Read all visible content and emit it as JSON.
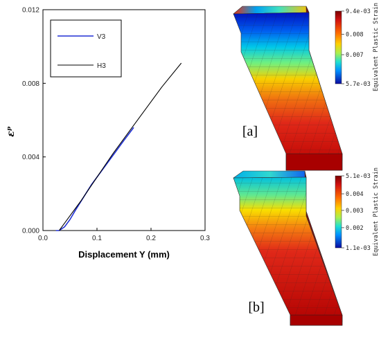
{
  "chart_data": {
    "type": "line",
    "xlabel": "Displacement Y (mm)",
    "ylabel": "εᵖ",
    "xlim": [
      0,
      0.3
    ],
    "ylim": [
      0,
      0.012
    ],
    "x_ticks": [
      "0.0",
      "0.1",
      "0.2",
      "0.3"
    ],
    "y_ticks": [
      "0.000",
      "0.004",
      "0.008",
      "0.012"
    ],
    "legend_position": "top-left",
    "grid": false,
    "series": [
      {
        "name": "V3",
        "color": "#1f2fd4",
        "x": [
          0.024,
          0.03,
          0.04,
          0.05,
          0.06,
          0.075,
          0.09,
          0.11,
          0.13,
          0.15,
          0.168
        ],
        "y": [
          0.0,
          0.0,
          0.0002,
          0.0006,
          0.0011,
          0.0018,
          0.0025,
          0.0033,
          0.0041,
          0.0049,
          0.0056
        ]
      },
      {
        "name": "H3",
        "color": "#000000",
        "x": [
          0.03,
          0.035,
          0.05,
          0.07,
          0.1,
          0.13,
          0.16,
          0.19,
          0.22,
          0.256
        ],
        "y": [
          0.0,
          0.0002,
          0.0008,
          0.0016,
          0.0029,
          0.0042,
          0.0054,
          0.0066,
          0.0078,
          0.0091
        ]
      }
    ]
  },
  "panels": [
    {
      "label": "[a]",
      "colorbar_title": "Equivalent Plastic Strain",
      "colorbar_ticks": [
        "9.4e-03",
        "0.008",
        "0.007",
        "5.7e-03"
      ],
      "colorbar_tick_fractions": [
        0.0,
        0.32,
        0.6,
        1.0
      ]
    },
    {
      "label": "[b]",
      "colorbar_title": "Equivalent Plastic Strain",
      "colorbar_ticks": [
        "5.1e-03",
        "0.004",
        "0.003",
        "0.002",
        "1.1e-03"
      ],
      "colorbar_tick_fractions": [
        0.0,
        0.25,
        0.48,
        0.72,
        1.0
      ]
    }
  ],
  "colors": {
    "jet_max": "#b30000",
    "jet_high": "#e83020",
    "jet_mid_high": "#f5c000",
    "jet_mid": "#40d8b0",
    "jet_low": "#00aaf0",
    "jet_min": "#0a10b0"
  }
}
